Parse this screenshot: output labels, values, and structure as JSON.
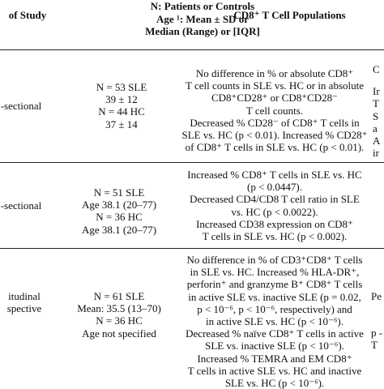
{
  "header": {
    "col1": "of Study",
    "col2_lines": [
      "N: Patients or Controls",
      "Age ¹: Mean ± SD or",
      "Median (Range) or [IQR]"
    ],
    "col3": "CD8⁺ T Cell Populations"
  },
  "rows": [
    {
      "design": "-sectional",
      "n_lines": [
        "N = 53 SLE",
        "39 ± 12",
        "N = 44 HC",
        "37 ± 14"
      ],
      "cd8_lines": [
        "No difference in % or absolute CD8⁺",
        "T cell counts in SLE vs. HC or in absolute",
        "CD8⁺CD28⁺ or CD8⁺CD28⁻",
        "T cell counts.",
        "Decreased % CD28⁻ of CD8⁺ T cells in",
        "SLE vs. HC (p < 0.01). Increased % CD28⁺",
        "of CD8⁺ T cells in SLE vs. HC (p < 0.01)."
      ],
      "right_fragments": [
        "C",
        "Ir",
        "T",
        "S",
        "a",
        "A",
        "ir"
      ]
    },
    {
      "design": "-sectional",
      "n_lines": [
        "N = 51 SLE",
        "Age 38.1 (20–77)",
        "N = 36 HC",
        "Age 38.1 (20–77)"
      ],
      "cd8_lines": [
        "Increased % CD8⁺ T cells in SLE vs. HC",
        "(p < 0.0447).",
        "Decreased CD4/CD8 T cell ratio in SLE",
        "vs. HC (p < 0.0022).",
        "Increased CD38 expression on CD8⁺",
        "T cells in SLE vs. HC (p < 0.002)."
      ]
    },
    {
      "design_lines": [
        "itudinal",
        "spective"
      ],
      "n_lines": [
        "N = 61 SLE",
        "Mean: 35.5 (13–70)",
        "N = 36 HC",
        "Age not specified"
      ],
      "cd8_lines": [
        "No difference in % of CD3⁺CD8⁺ T cells",
        "in SLE vs. HC. Increased % HLA-DR⁺,",
        "perforin⁺ and granzyme B⁺ CD8⁺ T cells",
        "in active SLE vs. inactive SLE (p = 0.02,",
        "p < 10⁻⁶, p < 10⁻⁶, respectively) and",
        "in active SLE vs. HC (p < 10⁻⁶).",
        "Decreased % naïve CD8⁺ T cells in active",
        "SLE vs. inactive SLE (p < 10⁻⁶).",
        "Increased % TEMRA and EM CD8⁺",
        "T cells in active SLE vs. HC and inactive",
        "SLE vs. HC (p < 10⁻⁶)."
      ],
      "right_fragments": [
        "Pe",
        "p -",
        "T"
      ]
    }
  ]
}
